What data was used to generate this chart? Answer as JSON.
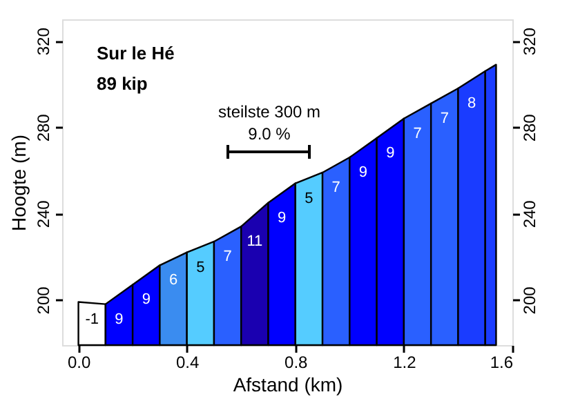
{
  "chart_data": {
    "type": "area",
    "title": "Sur le Hé",
    "subtitle": "89 kip",
    "xlabel": "Afstand (km)",
    "ylabel": "Hoogte (m)",
    "xlim": [
      -0.06,
      1.6
    ],
    "xticks": [
      {
        "value": 0,
        "label": "0.0"
      },
      0.4,
      0.8,
      1.2,
      1.6
    ],
    "ylim": [
      179,
      330
    ],
    "yticks": [
      200,
      240,
      280,
      320
    ],
    "y2lim": [
      179,
      330
    ],
    "y2ticks": [
      200,
      240,
      280,
      320
    ],
    "grid": false,
    "series": [
      {
        "color": "#ffffff",
        "x": [
          0,
          0.1
        ],
        "values": [
          199,
          198
        ]
      },
      {
        "color": "#0000ff",
        "x": [
          0.1,
          0.2
        ],
        "values": [
          198,
          207
        ]
      },
      {
        "color": "#0000ff",
        "x": [
          0.2,
          0.3
        ],
        "values": [
          207,
          216
        ]
      },
      {
        "color": "#3a8cf0",
        "x": [
          0.3,
          0.4
        ],
        "values": [
          216,
          222
        ]
      },
      {
        "color": "#55ccff",
        "x": [
          0.4,
          0.5
        ],
        "values": [
          222,
          227
        ]
      },
      {
        "color": "#2a60ff",
        "x": [
          0.5,
          0.6
        ],
        "values": [
          227,
          234
        ]
      },
      {
        "color": "#1a00b0",
        "x": [
          0.6,
          0.7
        ],
        "values": [
          234,
          245
        ]
      },
      {
        "color": "#0000ff",
        "x": [
          0.7,
          0.8
        ],
        "values": [
          245,
          254
        ]
      },
      {
        "color": "#55ccff",
        "x": [
          0.8,
          0.9
        ],
        "values": [
          254,
          259
        ]
      },
      {
        "color": "#2a60ff",
        "x": [
          0.9,
          1.0
        ],
        "values": [
          259,
          266
        ]
      },
      {
        "color": "#0000ff",
        "x": [
          1.0,
          1.1
        ],
        "values": [
          266,
          275
        ]
      },
      {
        "color": "#0000ff",
        "x": [
          1.1,
          1.2
        ],
        "values": [
          275,
          284
        ]
      },
      {
        "color": "#2a60ff",
        "x": [
          1.2,
          1.3
        ],
        "values": [
          284,
          291
        ]
      },
      {
        "color": "#2a60ff",
        "x": [
          1.3,
          1.4
        ],
        "values": [
          291,
          298
        ]
      },
      {
        "color": "#1a3cff",
        "x": [
          1.4,
          1.5
        ],
        "values": [
          298,
          306
        ]
      },
      {
        "color": "#1a3cff",
        "x": [
          1.5,
          1.54
        ],
        "values": [
          306,
          309
        ]
      }
    ],
    "annotations": [
      "-1",
      "9",
      "9",
      "6",
      "5",
      "7",
      "11",
      "9",
      "5",
      "7",
      "9",
      "9",
      "7",
      "7",
      "8",
      "steilste 300 m",
      "9.0 %"
    ]
  }
}
